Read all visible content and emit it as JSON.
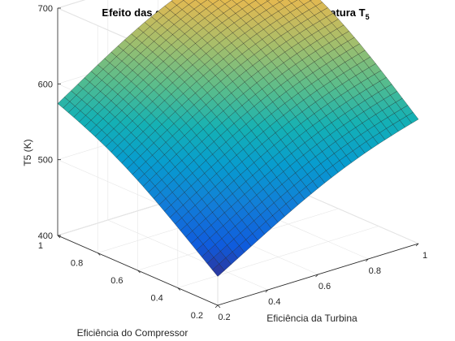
{
  "chart_data": {
    "type": "surface",
    "title": "Efeito das eficiências isentrópicas na Temperatura T",
    "title_subscript": "5",
    "xlabel": "Eficiência da Turbina",
    "ylabel": "Eficiência do Compressor",
    "zlabel": "T5 (K)",
    "xlim": [
      0.2,
      1
    ],
    "ylim": [
      0.2,
      1
    ],
    "zlim": [
      400,
      700
    ],
    "x_ticks": [
      0.2,
      0.4,
      0.6,
      0.8,
      1
    ],
    "y_ticks": [
      0.2,
      0.4,
      0.6,
      0.8,
      1
    ],
    "z_ticks": [
      400,
      500,
      600,
      700
    ],
    "x_tick_labels": [
      "0.2",
      "0.4",
      "0.6",
      "0.8",
      "1"
    ],
    "y_tick_labels": [
      "0.2",
      "0.4",
      "0.6",
      "0.8",
      "1"
    ],
    "z_tick_labels": [
      "400",
      "500",
      "600",
      "700"
    ],
    "grid": true,
    "colormap": "parula",
    "corner_values": [
      {
        "turbina": 0.2,
        "compressor": 0.2,
        "T5": 438
      },
      {
        "turbina": 1.0,
        "compressor": 0.2,
        "T5": 564
      },
      {
        "turbina": 0.2,
        "compressor": 1.0,
        "T5": 574
      },
      {
        "turbina": 1.0,
        "compressor": 1.0,
        "T5": 697
      }
    ]
  }
}
